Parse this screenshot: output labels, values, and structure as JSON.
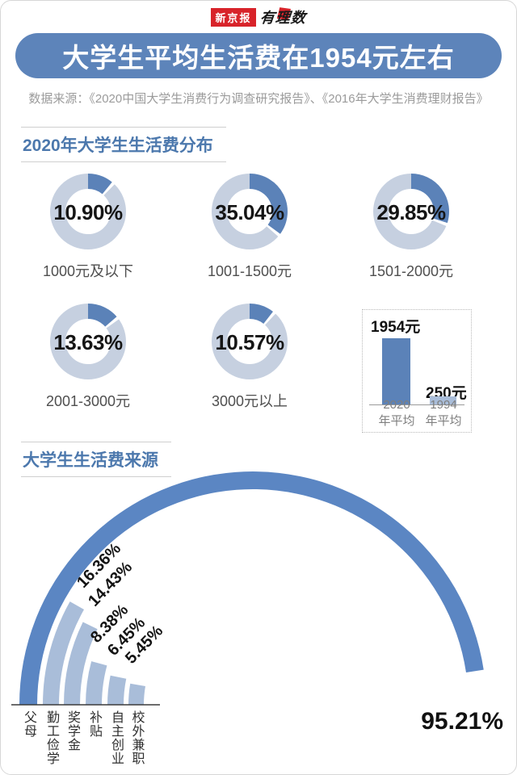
{
  "logo": {
    "brand": "新京报",
    "script": "有理数"
  },
  "title": "大学生平均生活费在1954元左右",
  "source": "数据来源：《2020中国大学生消费行为调查研究报告》、《2016年大学生消费理财报告》",
  "sections": [
    {
      "heading": "2020年大学生生活费分布"
    },
    {
      "heading": "大学生生活费来源"
    }
  ],
  "colors": {
    "banner_blue": "#5d84ba",
    "accent_blue": "#5b82b8",
    "arc_dark_blue": "#5b86c3",
    "ring_light": "#c6d0e0",
    "light_blue": "#a9bdd9",
    "brand_red": "#d8232a",
    "heading_blue": "#4c78ad"
  },
  "chart_data": [
    {
      "type": "pie",
      "variant": "donut-grid",
      "title": "2020年大学生生活费分布",
      "unit": "%",
      "categories": [
        "1000元及以下",
        "1001-1500元",
        "1501-2000元",
        "2001-3000元",
        "3000元以上"
      ],
      "values": [
        10.9,
        35.04,
        29.85,
        13.63,
        10.57
      ],
      "value_labels": [
        "10.90%",
        "35.04%",
        "29.85%",
        "13.63%",
        "10.57%"
      ]
    },
    {
      "type": "bar",
      "variant": "dashed-comparison-box",
      "categories": [
        [
          "2020",
          "年平均"
        ],
        [
          "1994",
          "年平均"
        ]
      ],
      "values": [
        1954,
        250
      ],
      "value_labels": [
        "1954元",
        "250元"
      ],
      "ylim": [
        0,
        1954
      ]
    },
    {
      "type": "bar",
      "variant": "half-donut-arcs",
      "title": "大学生生活费来源",
      "unit": "%",
      "categories": [
        "父母",
        "勤工俭学",
        "奖学金",
        "补贴",
        "自主创业",
        "校外兼职"
      ],
      "values": [
        95.21,
        16.36,
        14.43,
        8.38,
        6.45,
        5.45
      ],
      "value_labels": [
        "95.21%",
        "16.36%",
        "14.43%",
        "8.38%",
        "6.45%",
        "5.45%"
      ],
      "scale": "semicircle = 100%"
    }
  ]
}
